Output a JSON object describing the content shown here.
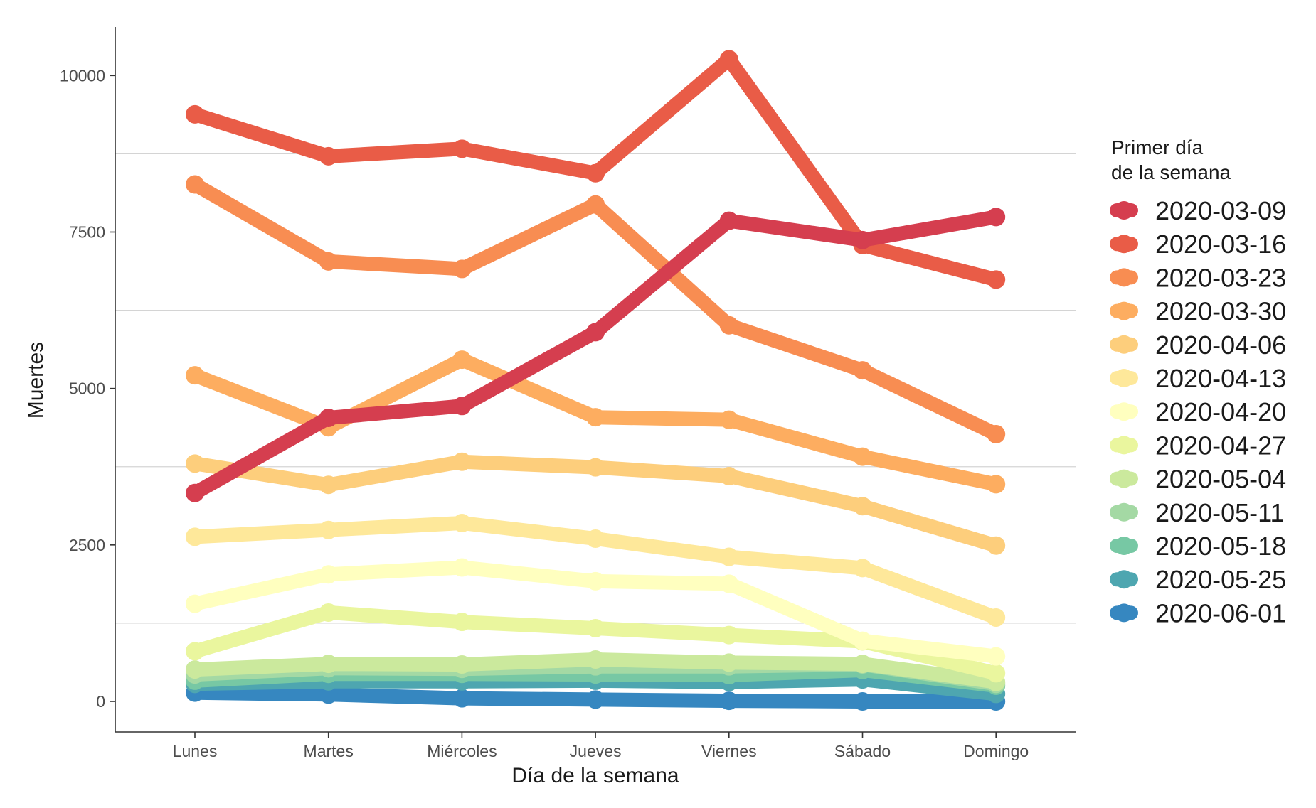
{
  "chart_data": {
    "type": "line",
    "xlabel": "Día de la semana",
    "ylabel": "Muertes",
    "categories": [
      "Lunes",
      "Martes",
      "Miércoles",
      "Jueves",
      "Viernes",
      "Sábado",
      "Domingo"
    ],
    "yticks": [
      0,
      2500,
      5000,
      7500,
      10000
    ],
    "ylim": [
      -500,
      10750
    ],
    "grid": "horizontal-minor",
    "legend": {
      "title_lines": [
        "Primer día",
        "de la semana"
      ],
      "placement": "right"
    },
    "series": [
      {
        "name": "2020-03-09",
        "color": "#d53e4f",
        "values": [
          3330,
          4530,
          4720,
          5900,
          7680,
          7370,
          7740
        ]
      },
      {
        "name": "2020-03-16",
        "color": "#e95c47",
        "values": [
          9380,
          8710,
          8830,
          8440,
          10260,
          7290,
          6740
        ]
      },
      {
        "name": "2020-03-23",
        "color": "#f88d52",
        "values": [
          8260,
          7030,
          6910,
          7940,
          6010,
          5290,
          4270
        ]
      },
      {
        "name": "2020-03-30",
        "color": "#fdad60",
        "values": [
          5210,
          4380,
          5460,
          4540,
          4500,
          3910,
          3470
        ]
      },
      {
        "name": "2020-04-06",
        "color": "#fdce7c",
        "values": [
          3800,
          3460,
          3830,
          3740,
          3600,
          3120,
          2490
        ]
      },
      {
        "name": "2020-04-13",
        "color": "#fee89a",
        "values": [
          2630,
          2740,
          2850,
          2600,
          2310,
          2130,
          1340
        ]
      },
      {
        "name": "2020-04-20",
        "color": "#ffffbf",
        "values": [
          1560,
          2030,
          2140,
          1920,
          1880,
          970,
          720
        ]
      },
      {
        "name": "2020-04-27",
        "color": "#eaf69e",
        "values": [
          800,
          1420,
          1270,
          1170,
          1060,
          960,
          450
        ]
      },
      {
        "name": "2020-05-04",
        "color": "#cbe99d",
        "values": [
          510,
          600,
          590,
          670,
          620,
          600,
          310
        ]
      },
      {
        "name": "2020-05-11",
        "color": "#a4d9a4",
        "values": [
          430,
          530,
          520,
          560,
          560,
          590,
          280
        ]
      },
      {
        "name": "2020-05-18",
        "color": "#77c8a4",
        "values": [
          330,
          440,
          440,
          430,
          420,
          500,
          250
        ]
      },
      {
        "name": "2020-05-25",
        "color": "#4ea6b0",
        "values": [
          280,
          320,
          320,
          330,
          310,
          350,
          120
        ]
      },
      {
        "name": "2020-06-01",
        "color": "#3687c0",
        "values": [
          140,
          110,
          50,
          30,
          10,
          0,
          0
        ]
      }
    ]
  }
}
